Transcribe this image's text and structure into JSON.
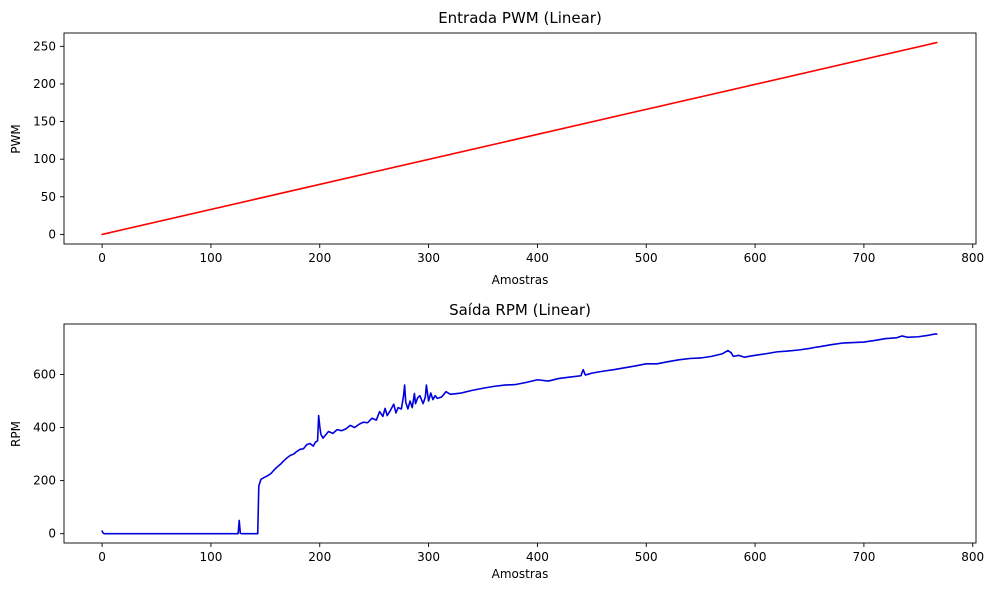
{
  "chart_data": [
    {
      "type": "line",
      "title": "Entrada PWM (Linear)",
      "xlabel": "Amostras",
      "ylabel": "PWM",
      "xlim": [
        -35,
        803
      ],
      "ylim": [
        -12.75,
        267.75
      ],
      "xticks": [
        0,
        100,
        200,
        300,
        400,
        500,
        600,
        700,
        800
      ],
      "yticks": [
        0,
        50,
        100,
        150,
        200,
        250
      ],
      "grid": false,
      "series": [
        {
          "color": "#ff0000",
          "x": [
            0,
            767
          ],
          "y": [
            0,
            255
          ]
        }
      ]
    },
    {
      "type": "line",
      "title": "Saída RPM (Linear)",
      "xlabel": "Amostras",
      "ylabel": "RPM",
      "xlim": [
        -35,
        803
      ],
      "ylim": [
        -35,
        790
      ],
      "xticks": [
        0,
        100,
        200,
        300,
        400,
        500,
        600,
        700,
        800
      ],
      "yticks": [
        0,
        200,
        400,
        600
      ],
      "grid": false,
      "series": [
        {
          "color": "#0000dd",
          "x": [
            0,
            1,
            2,
            125,
            126,
            127,
            128,
            143,
            144,
            146,
            149,
            152,
            155,
            158,
            161,
            164,
            167,
            170,
            173,
            176,
            179,
            182,
            185,
            188,
            191,
            194,
            196,
            198,
            199,
            200,
            201,
            203,
            205,
            208,
            212,
            216,
            220,
            224,
            228,
            232,
            236,
            240,
            244,
            248,
            252,
            255,
            258,
            260,
            262,
            265,
            268,
            270,
            272,
            275,
            277,
            278,
            279,
            281,
            283,
            285,
            287,
            288,
            290,
            292,
            295,
            297,
            298,
            300,
            302,
            304,
            306,
            308,
            312,
            316,
            320,
            330,
            340,
            350,
            360,
            370,
            380,
            390,
            400,
            410,
            420,
            430,
            440,
            442,
            444,
            446,
            450,
            460,
            470,
            480,
            490,
            500,
            510,
            520,
            530,
            540,
            550,
            560,
            570,
            575,
            578,
            580,
            585,
            590,
            600,
            610,
            620,
            630,
            640,
            650,
            655,
            660,
            670,
            680,
            690,
            700,
            710,
            720,
            730,
            735,
            740,
            750,
            760,
            765,
            767
          ],
          "y": [
            10,
            2,
            0,
            0,
            50,
            2,
            0,
            0,
            180,
            205,
            212,
            218,
            226,
            240,
            252,
            262,
            275,
            286,
            295,
            300,
            310,
            318,
            320,
            335,
            340,
            330,
            345,
            350,
            445,
            405,
            375,
            360,
            370,
            385,
            378,
            392,
            388,
            395,
            408,
            400,
            412,
            420,
            418,
            435,
            428,
            460,
            442,
            472,
            445,
            465,
            488,
            455,
            475,
            470,
            520,
            560,
            495,
            470,
            500,
            475,
            528,
            490,
            512,
            520,
            490,
            515,
            560,
            500,
            530,
            505,
            520,
            510,
            515,
            535,
            525,
            530,
            540,
            548,
            555,
            560,
            562,
            570,
            580,
            575,
            585,
            590,
            595,
            618,
            598,
            600,
            605,
            612,
            618,
            625,
            632,
            640,
            640,
            648,
            655,
            660,
            662,
            668,
            678,
            690,
            682,
            668,
            672,
            665,
            672,
            678,
            685,
            688,
            692,
            698,
            702,
            705,
            712,
            718,
            720,
            722,
            728,
            735,
            738,
            745,
            740,
            742,
            748,
            752,
            752
          ]
        }
      ]
    }
  ]
}
